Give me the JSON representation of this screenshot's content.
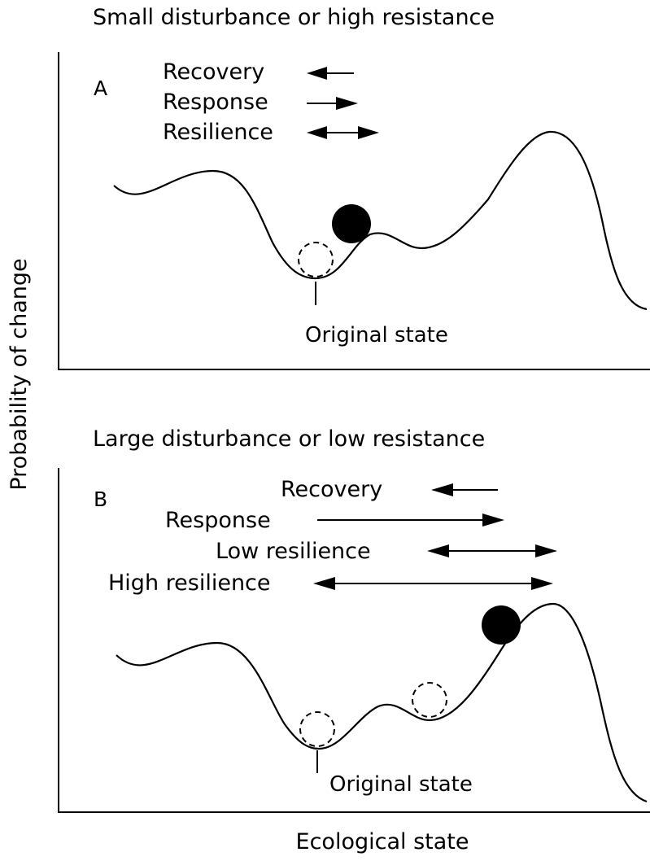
{
  "axis": {
    "y_label": "Probability of change",
    "x_label": "Ecological state"
  },
  "panels": [
    {
      "id": "A",
      "title": "Small disturbance or high resistance",
      "letter": "A",
      "arrows": [
        {
          "label": "Recovery",
          "direction": "left"
        },
        {
          "label": "Response",
          "direction": "right"
        },
        {
          "label": "Resilience",
          "direction": "both"
        }
      ],
      "state_label": "Original state"
    },
    {
      "id": "B",
      "title": "Large disturbance or low resistance",
      "letter": "B",
      "arrows": [
        {
          "label": "Recovery",
          "direction": "left"
        },
        {
          "label": "Response",
          "direction": "right"
        },
        {
          "label": "Low resilience",
          "direction": "both"
        },
        {
          "label": "High resilience",
          "direction": "both"
        }
      ],
      "state_label": "Original state"
    }
  ],
  "colors": {
    "ink": "#000000",
    "background": "#ffffff"
  }
}
